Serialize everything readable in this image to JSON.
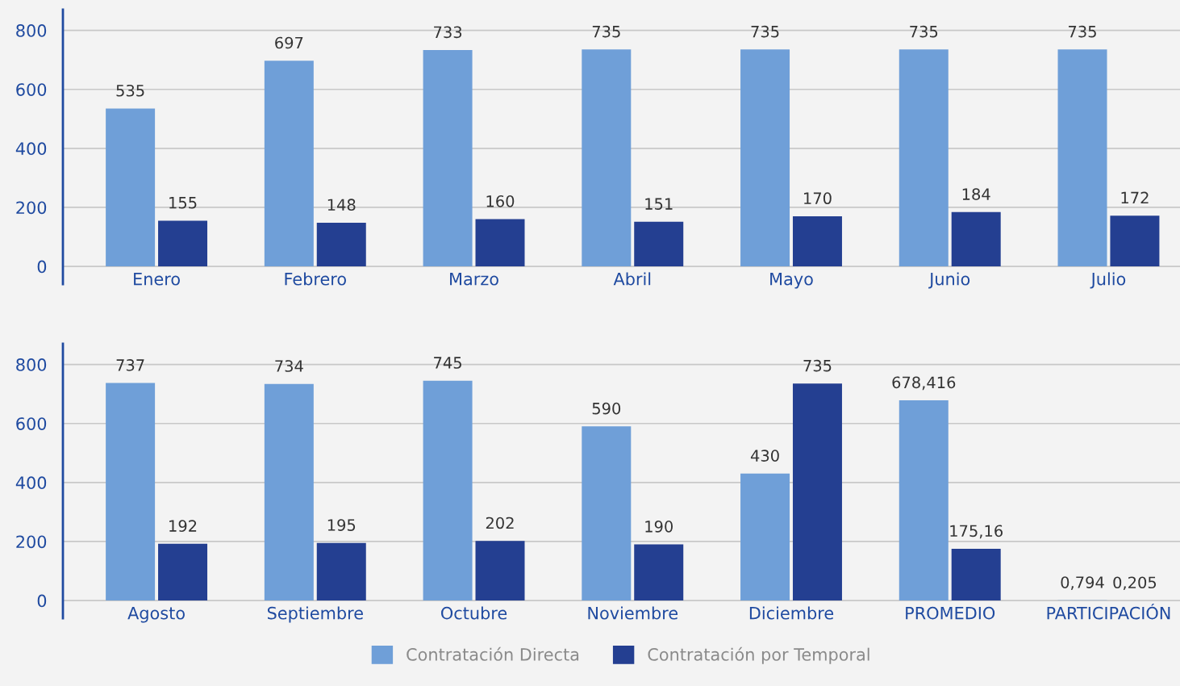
{
  "chart_data": [
    {
      "type": "bar",
      "categories": [
        "Enero",
        "Febrero",
        "Marzo",
        "Abril",
        "Mayo",
        "Junio",
        "Julio"
      ],
      "series": [
        {
          "color": "#6f9fd8",
          "values": [
            535,
            697,
            733,
            735,
            735,
            735,
            735
          ],
          "value_labels": [
            "535",
            "697",
            "733",
            "735",
            "735",
            "735",
            "735"
          ]
        },
        {
          "color": "#243f91",
          "values": [
            155,
            148,
            160,
            151,
            170,
            184,
            172
          ],
          "value_labels": [
            "155",
            "148",
            "160",
            "151",
            "170",
            "184",
            "172"
          ]
        }
      ],
      "ylim": [
        -60,
        870
      ],
      "yticks": [
        0,
        200,
        400,
        600,
        800
      ],
      "grid": "y",
      "legend": false
    },
    {
      "type": "bar",
      "categories": [
        "Agosto",
        "Septiembre",
        "Octubre",
        "Noviembre",
        "Diciembre",
        "PROMEDIO",
        "PARTICIPACIÓN"
      ],
      "series": [
        {
          "name": "Contratación Directa",
          "color": "#6f9fd8",
          "values": [
            737,
            734,
            745,
            590,
            430,
            678.416,
            0.794
          ],
          "value_labels": [
            "737",
            "734",
            "745",
            "590",
            "430",
            "678,416",
            "0,794"
          ]
        },
        {
          "name": "Contratación por Temporal",
          "color": "#243f91",
          "values": [
            192,
            195,
            202,
            190,
            735,
            175.16,
            0.205
          ],
          "value_labels": [
            "192",
            "195",
            "202",
            "190",
            "735",
            "175,16",
            "0,205"
          ]
        }
      ],
      "ylim": [
        -60,
        870
      ],
      "yticks": [
        0,
        200,
        400,
        600,
        800
      ],
      "grid": "y",
      "legend": "bottom"
    }
  ]
}
